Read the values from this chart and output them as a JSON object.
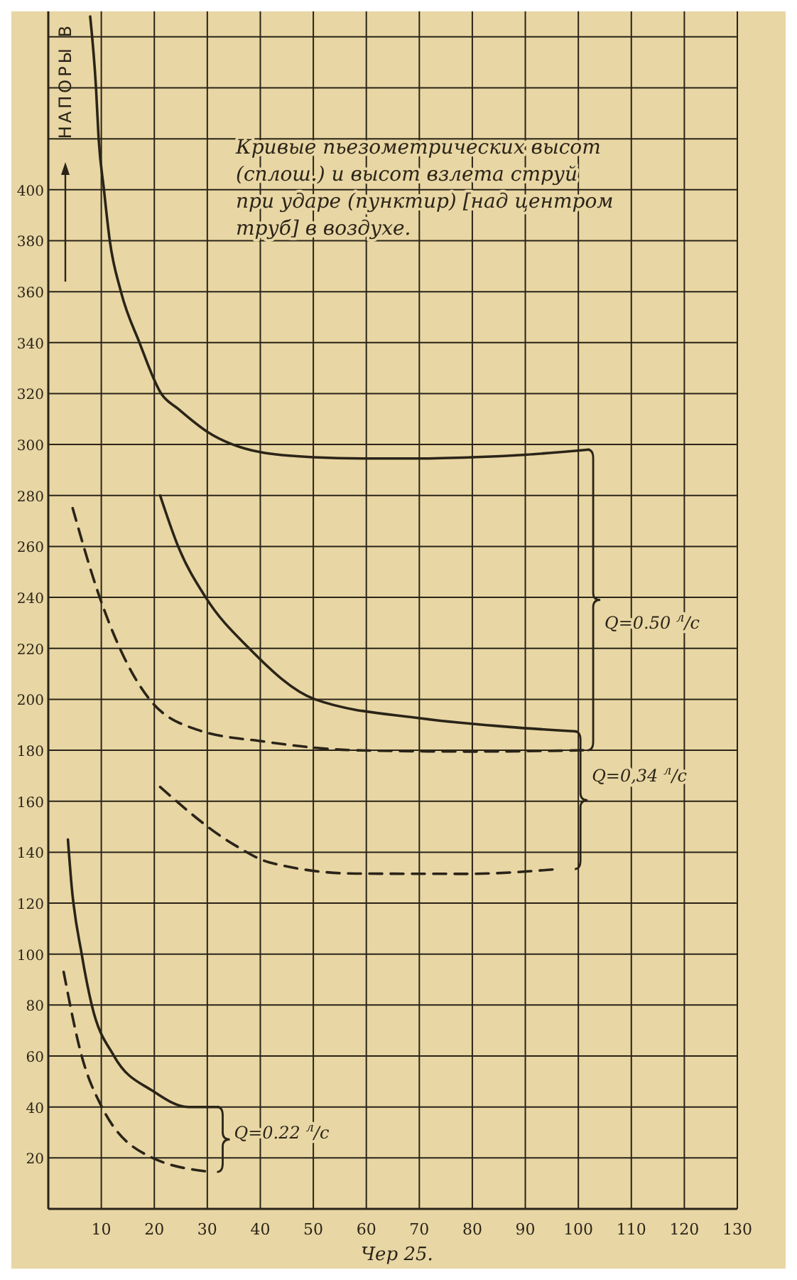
{
  "chart_data": {
    "type": "line",
    "title": "Кривые пьезометрических высот (сплош.) и высот взлета струй при ударе (пунктир) [над центром труб] в воздухе.",
    "ylabel": "НАПОРЫ В",
    "xlim": [
      0,
      130
    ],
    "xticks": [
      10,
      20,
      30,
      40,
      50,
      60,
      70,
      80,
      90,
      100,
      110,
      120,
      130
    ],
    "ylim": [
      0,
      470
    ],
    "yticks": [
      20,
      40,
      60,
      80,
      100,
      120,
      140,
      160,
      180,
      200,
      220,
      240,
      260,
      280,
      300,
      320,
      340,
      360,
      380,
      400,
      {
        "value": 420,
        "label": null
      },
      {
        "value": 440,
        "label": null
      },
      {
        "value": 460,
        "label": null
      }
    ],
    "grid": true,
    "marker": "none",
    "series": [
      {
        "color": "#2a2418",
        "line_style": "solid",
        "x": [
          7.9,
          9,
          9.5,
          10.5,
          11.6,
          13.7,
          17.2,
          21.3,
          24.5,
          30,
          40,
          50,
          60,
          70,
          80,
          90,
          102
        ],
        "values": [
          468,
          440,
          420,
          400,
          380,
          360,
          340,
          320,
          314,
          305,
          297,
          295,
          294.5,
          294.5,
          295,
          296,
          298
        ]
      },
      {
        "color": "#2a2418",
        "line_style": "dashed",
        "x": [
          4.6,
          9.7,
          13.5,
          19.1,
          28.2,
          40.8,
          58,
          80,
          101
        ],
        "values": [
          275,
          240,
          220,
          200,
          188,
          183.4,
          180,
          179.5,
          180
        ]
      },
      {
        "color": "#2a2418",
        "line_style": "solid",
        "x": [
          21.1,
          24.5,
          29.7,
          37.9,
          50.3,
          70.4,
          86.7,
          99.6
        ],
        "values": [
          280,
          260,
          240,
          220,
          200,
          192.5,
          189.2,
          187.4
        ]
      },
      {
        "color": "#2a2418",
        "line_style": "dashed",
        "x": [
          21.1,
          35,
          41.7,
          58,
          79,
          96.3
        ],
        "values": [
          165.6,
          143,
          136,
          131.6,
          131.5,
          133.4
        ]
      },
      {
        "color": "#2a2418",
        "line_style": "solid",
        "x": [
          3.7,
          4.4,
          6.3,
          8.2,
          12.4,
          19.7,
          26.4,
          32.1
        ],
        "values": [
          145,
          126.7,
          100,
          80,
          60,
          46.3,
          40,
          40
        ]
      },
      {
        "color": "#2a2418",
        "line_style": "dashed",
        "x": [
          2.9,
          6.3,
          10.1,
          19.7,
          30.7
        ],
        "values": [
          93,
          60,
          40,
          20,
          14.5
        ]
      }
    ],
    "annotations": [
      "Q=0.50 $^{л}$/с",
      "Q=0,34 $^{л}$/с",
      "Q=0.22 $^{л}$/с",
      "Чер 25."
    ]
  }
}
